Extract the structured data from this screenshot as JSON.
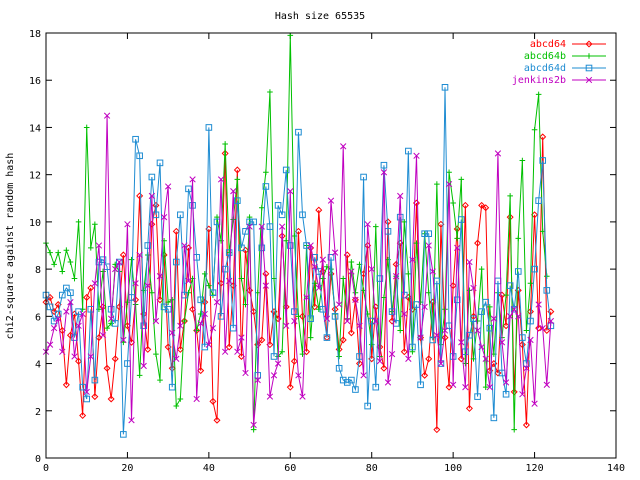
{
  "chart_data": {
    "type": "line",
    "title": "Hash size 65535",
    "xlabel": "",
    "ylabel": "chi2-square against random hash",
    "xlim": [
      0,
      140
    ],
    "ylim": [
      0,
      18
    ],
    "xticks": [
      0,
      20,
      40,
      60,
      80,
      100,
      120,
      140
    ],
    "yticks": [
      0,
      2,
      4,
      6,
      8,
      10,
      12,
      14,
      16,
      18
    ],
    "xtick_labels": [
      "0",
      "20",
      "40",
      "60",
      "80",
      "100",
      "120",
      "140"
    ],
    "ytick_labels": [
      "0",
      "2",
      "4",
      "6",
      "8",
      "10",
      "12",
      "14",
      "16",
      "18"
    ],
    "grid": false,
    "legend_position": "top-right",
    "series": [
      {
        "name": "abcd64",
        "color": "#ff0000",
        "marker": "diamond",
        "values": [
          6.6,
          6.8,
          6.2,
          6.5,
          5.4,
          3.1,
          5.2,
          6.1,
          4.1,
          1.8,
          6.8,
          7.2,
          2.6,
          5.1,
          6.4,
          3.8,
          2.5,
          4.2,
          6.4,
          8.6,
          5.6,
          4.9,
          6.7,
          11.1,
          6.1,
          4.6,
          9.9,
          10.7,
          6.7,
          8.6,
          4.7,
          3.8,
          9.6,
          4.6,
          5.8,
          8.9,
          6.3,
          5.4,
          3.7,
          6.6,
          9.7,
          2.4,
          1.6,
          7.4,
          12.9,
          4.7,
          7.3,
          12.2,
          4.3,
          8.8,
          7.1,
          6.2,
          4.8,
          5.0,
          7.8,
          4.8,
          6.2,
          5.9,
          9.4,
          6.4,
          3.0,
          4.1,
          9.6,
          6.0,
          4.5,
          8.9,
          6.4,
          10.5,
          7.9,
          5.1,
          7.8,
          6.3,
          4.6,
          5.0,
          8.6,
          5.3,
          6.7,
          4.0,
          7.8,
          9.0,
          4.2,
          6.4,
          4.7,
          3.8,
          10.0,
          5.8,
          8.2,
          9.1,
          4.5,
          6.8,
          6.3,
          10.8,
          5.1,
          3.5,
          4.2,
          6.6,
          1.2,
          9.9,
          5.1,
          3.0,
          7.3,
          9.7,
          4.2,
          10.7,
          2.1,
          6.0,
          9.1,
          10.7,
          10.6,
          3.7,
          4.0,
          3.6,
          6.9,
          5.6,
          10.2,
          2.8,
          7.1,
          4.8,
          1.4,
          6.2,
          10.3,
          5.5,
          13.6,
          5.4,
          6.2
        ]
      },
      {
        "name": "abcd64b",
        "color": "#00c000",
        "marker": "plus",
        "values": [
          9.1,
          8.7,
          8.2,
          8.7,
          7.9,
          8.8,
          8.3,
          7.6,
          10.0,
          6.3,
          14.0,
          8.9,
          9.9,
          6.3,
          7.9,
          5.5,
          5.7,
          8.2,
          7.9,
          4.9,
          6.6,
          8.4,
          6.5,
          3.5,
          7.1,
          8.6,
          7.0,
          4.4,
          3.3,
          9.2,
          6.6,
          6.7,
          2.2,
          2.5,
          5.8,
          7.0,
          7.6,
          5.4,
          6.1,
          7.8,
          7.3,
          6.9,
          10.2,
          9.2,
          13.3,
          8.7,
          10.1,
          11.8,
          7.6,
          6.5,
          10.2,
          1.2,
          7.0,
          10.6,
          12.1,
          15.5,
          7.6,
          4.3,
          4.5,
          9.2,
          17.9,
          9.4,
          6.0,
          4.4,
          9.0,
          5.1,
          7.4,
          6.3,
          7.6,
          8.1,
          8.0,
          6.1,
          4.3,
          7.6,
          5.9,
          8.3,
          7.0,
          8.2,
          7.1,
          6.1,
          4.8,
          9.8,
          4.3,
          6.8,
          8.4,
          6.2,
          7.7,
          5.4,
          10.0,
          7.8,
          4.5,
          9.1,
          6.6,
          9.5,
          7.0,
          5.1,
          11.6,
          4.8,
          6.3,
          12.1,
          10.8,
          9.3,
          11.8,
          4.0,
          7.1,
          4.2,
          5.8,
          8.0,
          3.0,
          6.4,
          4.4,
          7.0,
          5.1,
          6.9,
          11.1,
          1.2,
          9.3,
          12.6,
          5.4,
          7.4,
          13.9,
          15.4,
          9.6,
          7.7
        ]
      },
      {
        "name": "abcd64d",
        "color": "#1e8cd2",
        "marker": "square",
        "values": [
          6.9,
          6.4,
          5.8,
          6.1,
          6.9,
          7.2,
          7.0,
          5.1,
          6.2,
          3.0,
          2.5,
          6.3,
          3.3,
          8.3,
          8.4,
          8.1,
          6.3,
          5.7,
          8.3,
          1.0,
          4.0,
          6.8,
          13.5,
          12.8,
          5.6,
          9.0,
          11.9,
          10.3,
          12.5,
          6.4,
          6.3,
          3.0,
          8.3,
          10.3,
          6.9,
          11.4,
          10.7,
          8.5,
          6.7,
          4.7,
          14.0,
          7.0,
          10.0,
          6.0,
          8.0,
          8.7,
          5.5,
          10.9,
          8.9,
          9.6,
          10.0,
          10.0,
          3.5,
          8.9,
          11.5,
          9.8,
          4.3,
          10.7,
          10.3,
          12.2,
          9.0,
          6.2,
          13.8,
          10.3,
          9.0,
          5.9,
          8.5,
          7.9,
          6.3,
          5.1,
          8.5,
          6.0,
          3.8,
          3.3,
          3.2,
          3.3,
          2.9,
          4.3,
          11.9,
          2.2,
          5.8,
          3.0,
          7.6,
          12.4,
          9.6,
          6.2,
          5.7,
          10.2,
          6.9,
          13.0,
          4.7,
          6.5,
          3.1,
          9.5,
          9.5,
          5.0,
          7.5,
          4.0,
          15.7,
          5.6,
          4.3,
          6.7,
          10.1,
          4.5,
          5.2,
          5.9,
          2.6,
          6.2,
          6.6,
          5.5,
          1.7,
          7.5,
          3.6,
          2.7,
          7.3,
          6.3,
          7.9,
          5.1,
          4.0,
          5.8,
          8.0,
          10.9,
          12.6,
          7.1,
          5.6
        ]
      },
      {
        "name": "jenkins2b",
        "color": "#c000c0",
        "marker": "x",
        "values": [
          4.5,
          4.8,
          5.5,
          5.9,
          4.5,
          6.2,
          6.6,
          4.3,
          5.6,
          6.1,
          2.8,
          4.3,
          7.4,
          9.0,
          5.2,
          14.5,
          5.9,
          8.0,
          8.3,
          5.0,
          9.9,
          1.6,
          7.4,
          8.6,
          3.9,
          7.3,
          11.1,
          5.8,
          7.7,
          10.2,
          11.5,
          5.3,
          4.2,
          5.6,
          9.0,
          7.5,
          11.8,
          2.5,
          5.7,
          6.1,
          4.8,
          5.5,
          6.6,
          11.8,
          4.5,
          7.5,
          11.3,
          4.5,
          5.1,
          3.6,
          9.8,
          1.4,
          3.3,
          9.8,
          7.3,
          2.6,
          3.5,
          4.0,
          9.8,
          5.6,
          11.3,
          5.8,
          3.5,
          2.6,
          6.8,
          9.0,
          8.1,
          7.2,
          8.4,
          5.9,
          10.9,
          8.7,
          6.5,
          13.2,
          5.8,
          7.9,
          6.7,
          5.6,
          3.5,
          9.9,
          8.0,
          5.8,
          4.1,
          12.1,
          3.2,
          4.4,
          7.7,
          11.1,
          6.1,
          4.2,
          8.4,
          12.8,
          5.1,
          6.4,
          9.0,
          7.9,
          5.2,
          4.0,
          5.4,
          11.6,
          3.1,
          8.9,
          4.9,
          3.0,
          8.3,
          7.2,
          5.4,
          4.7,
          4.2,
          3.0,
          5.9,
          12.9,
          4.9,
          3.2,
          6.0,
          6.3,
          6.0,
          2.7,
          3.8,
          5.0,
          2.3,
          6.5,
          5.5,
          3.1,
          5.8
        ]
      }
    ]
  }
}
